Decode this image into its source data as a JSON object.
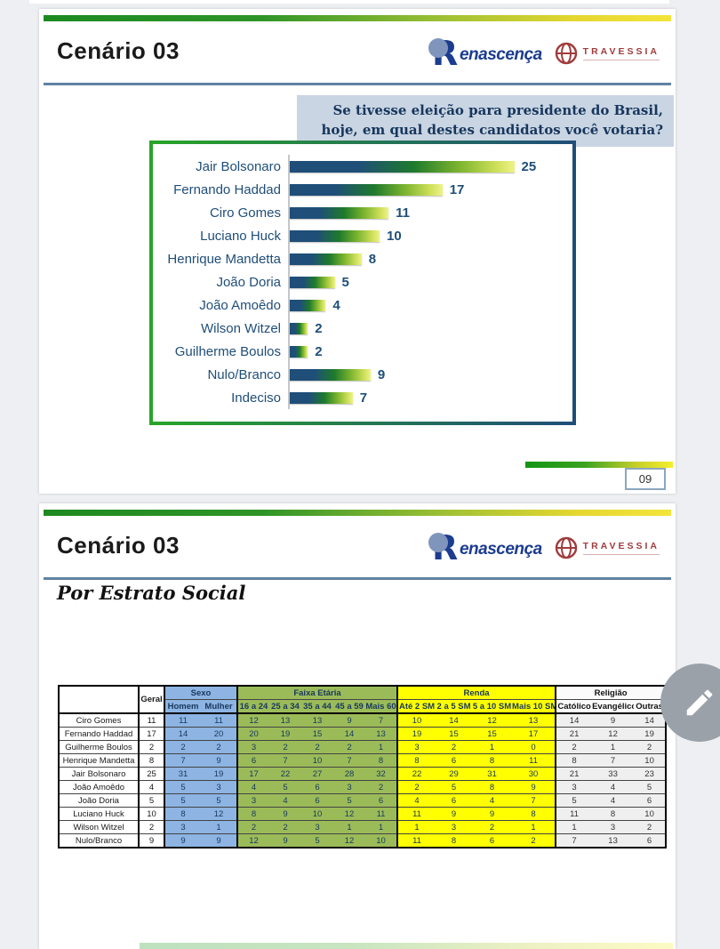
{
  "page": {
    "background_color": "#edeff2"
  },
  "logos": {
    "renascenca_initial": "R",
    "renascenca_text": "enascença",
    "renascenca_color": "#1b3c8f",
    "travessia_text": "TRAVESSIA",
    "travessia_color": "#a03c3c"
  },
  "slide1": {
    "title": "Cenário 03",
    "page_number": "09",
    "accent_colors": {
      "green": "#1d8a21",
      "yellow": "#f2e43a",
      "rule_blue": "#5f82a3"
    }
  },
  "chart_data": {
    "type": "bar",
    "orientation": "horizontal",
    "title": "Se tivesse eleição para presidente do Brasil, hoje, em qual destes candidatos você votaria?",
    "categories": [
      "Jair Bolsonaro",
      "Fernando Haddad",
      "Ciro Gomes",
      "Luciano Huck",
      "Henrique Mandetta",
      "João Doria",
      "João Amoêdo",
      "Wilson Witzel",
      "Guilherme Boulos",
      "Nulo/Branco",
      "Indeciso"
    ],
    "values": [
      25,
      17,
      11,
      10,
      8,
      5,
      4,
      2,
      2,
      9,
      7
    ],
    "xlabel": "",
    "ylabel": "",
    "xlim": [
      0,
      27
    ],
    "grid": false,
    "legend": false,
    "value_labels_shown": true,
    "bar_gradient": [
      "#1F4E79",
      "#1E7A2C",
      "#EEF388"
    ],
    "frame_border_gradient": [
      "#28A428",
      "#1F4E79"
    ]
  },
  "slide2": {
    "title": "Cenário 03",
    "section_title": "Por Estrato Social",
    "table": {
      "corner": "",
      "geral_label": "Geral",
      "groups": [
        {
          "key": "sexo",
          "label": "Sexo",
          "color": "#8DB4E2",
          "cols": [
            "Homem",
            "Mulher"
          ]
        },
        {
          "key": "faixa",
          "label": "Faixa Etária",
          "color": "#9BBB59",
          "cols": [
            "16 a 24",
            "25 a 34",
            "35 a 44",
            "45 a 59",
            "Mais 60"
          ]
        },
        {
          "key": "renda",
          "label": "Renda",
          "color": "#FFFF00",
          "cols": [
            "Até 2 SM",
            "2 a 5 SM",
            "5 a 10 SM",
            "Mais 10 SM"
          ]
        },
        {
          "key": "religiao",
          "label": "Religião",
          "color": "#EFEFEF",
          "cols": [
            "Católico",
            "Evangélico",
            "Outras"
          ]
        }
      ],
      "rows": [
        {
          "name": "Ciro Gomes",
          "geral": 11,
          "sexo": [
            11,
            11
          ],
          "faixa": [
            12,
            13,
            13,
            9,
            7
          ],
          "renda": [
            10,
            14,
            12,
            13
          ],
          "religiao": [
            14,
            9,
            14
          ]
        },
        {
          "name": "Fernando Haddad",
          "geral": 17,
          "sexo": [
            14,
            20
          ],
          "faixa": [
            20,
            19,
            15,
            14,
            13
          ],
          "renda": [
            19,
            15,
            15,
            17
          ],
          "religiao": [
            21,
            12,
            19
          ]
        },
        {
          "name": "Guilherme Boulos",
          "geral": 2,
          "sexo": [
            2,
            2
          ],
          "faixa": [
            3,
            2,
            2,
            2,
            1
          ],
          "renda": [
            3,
            2,
            1,
            0
          ],
          "religiao": [
            2,
            1,
            2
          ]
        },
        {
          "name": "Henrique Mandetta",
          "geral": 8,
          "sexo": [
            7,
            9
          ],
          "faixa": [
            6,
            7,
            10,
            7,
            8
          ],
          "renda": [
            8,
            6,
            8,
            11
          ],
          "religiao": [
            8,
            7,
            10
          ]
        },
        {
          "name": "Jair Bolsonaro",
          "geral": 25,
          "sexo": [
            31,
            19
          ],
          "faixa": [
            17,
            22,
            27,
            28,
            32
          ],
          "renda": [
            22,
            29,
            31,
            30
          ],
          "religiao": [
            21,
            33,
            23
          ]
        },
        {
          "name": "João Amoêdo",
          "geral": 4,
          "sexo": [
            5,
            3
          ],
          "faixa": [
            4,
            5,
            6,
            3,
            2
          ],
          "renda": [
            2,
            5,
            8,
            9
          ],
          "religiao": [
            3,
            4,
            5
          ]
        },
        {
          "name": "João Doria",
          "geral": 5,
          "sexo": [
            5,
            5
          ],
          "faixa": [
            3,
            4,
            6,
            5,
            6
          ],
          "renda": [
            4,
            6,
            4,
            7
          ],
          "religiao": [
            5,
            4,
            6
          ]
        },
        {
          "name": "Luciano Huck",
          "geral": 10,
          "sexo": [
            8,
            12
          ],
          "faixa": [
            8,
            9,
            10,
            12,
            11
          ],
          "renda": [
            11,
            9,
            9,
            8
          ],
          "religiao": [
            11,
            8,
            10
          ]
        },
        {
          "name": "Wilson Witzel",
          "geral": 2,
          "sexo": [
            3,
            1
          ],
          "faixa": [
            2,
            2,
            3,
            1,
            1
          ],
          "renda": [
            1,
            3,
            2,
            1
          ],
          "religiao": [
            1,
            3,
            2
          ]
        },
        {
          "name": "Nulo/Branco",
          "geral": 9,
          "sexo": [
            9,
            9
          ],
          "faixa": [
            12,
            9,
            5,
            12,
            10
          ],
          "renda": [
            11,
            8,
            6,
            2
          ],
          "religiao": [
            7,
            13,
            6
          ]
        }
      ]
    }
  },
  "fab": {
    "icon": "pencil-icon",
    "color": "#9aa1a9"
  }
}
